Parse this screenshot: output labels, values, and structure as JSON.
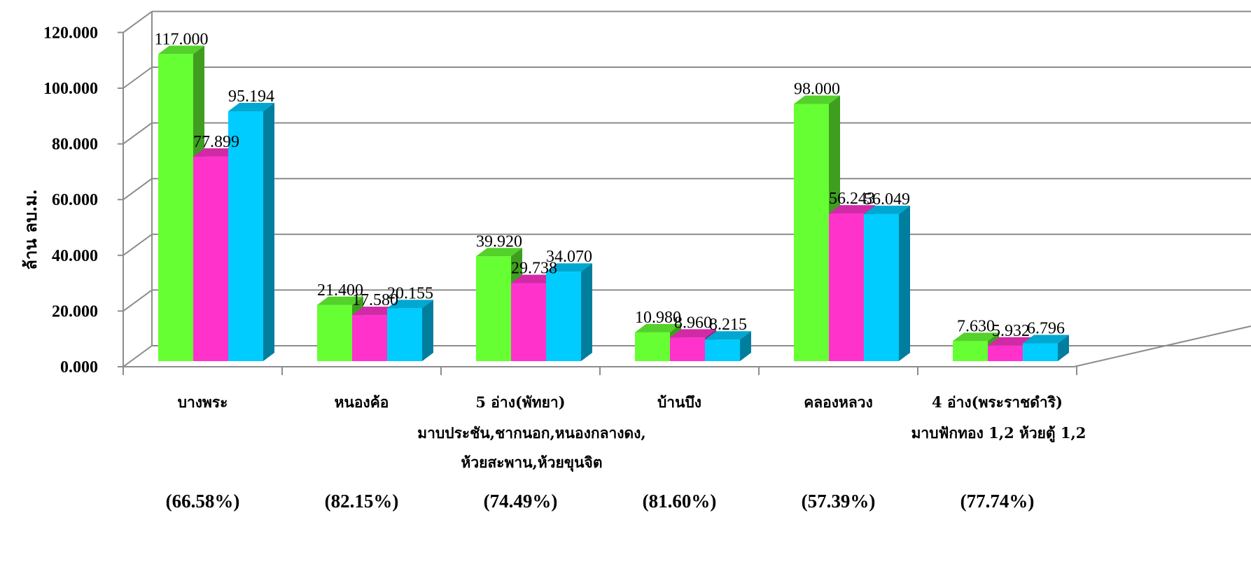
{
  "chart_data": {
    "type": "bar",
    "style": "3d-clustered-column",
    "ylabel": "ล้าน ลบ.ม.",
    "ylim": [
      0,
      120
    ],
    "y_ticks": [
      "0.000",
      "20.000",
      "40.000",
      "60.000",
      "80.000",
      "100.000",
      "120.000"
    ],
    "grid": true,
    "categories": [
      {
        "label": "บางพระ",
        "sub": [],
        "percent": "(66.58%)"
      },
      {
        "label": "หนองค้อ",
        "sub": [],
        "percent": "(82.15%)"
      },
      {
        "label": "5 อ่าง(พัทยา)",
        "sub": [
          "มาบประชัน,ชากนอก,หนองกลางดง,",
          "ห้วยสะพาน,ห้วยขุนจิต"
        ],
        "percent": "(74.49%)"
      },
      {
        "label": "บ้านบึง",
        "sub": [],
        "percent": "(81.60%)"
      },
      {
        "label": "คลองหลวง",
        "sub": [],
        "percent": "(57.39%)"
      },
      {
        "label": "4 อ่าง(พระราชดำริ)",
        "sub": [
          "มาบฟักทอง 1,2 ห้วยตู้ 1,2"
        ],
        "percent": "(77.74%)"
      }
    ],
    "series": [
      {
        "color": "#66ff33",
        "values": [
          117.0,
          21.4,
          39.92,
          10.98,
          98.0,
          7.63
        ],
        "labels": [
          "117.000",
          "21.400",
          "39.920",
          "10.980",
          "98.000",
          "7.630"
        ]
      },
      {
        "color": "#ff33cc",
        "values": [
          77.899,
          17.58,
          29.738,
          8.96,
          56.243,
          5.932
        ],
        "labels": [
          "77.899",
          "17.580",
          "29.738",
          "8.960",
          "56.243",
          "5.932"
        ]
      },
      {
        "color": "#00ccff",
        "values": [
          95.194,
          20.155,
          34.07,
          8.215,
          56.049,
          6.796
        ],
        "labels": [
          "95.194",
          "20.155",
          "34.070",
          "8.215",
          "56.049",
          "6.796"
        ]
      }
    ]
  }
}
